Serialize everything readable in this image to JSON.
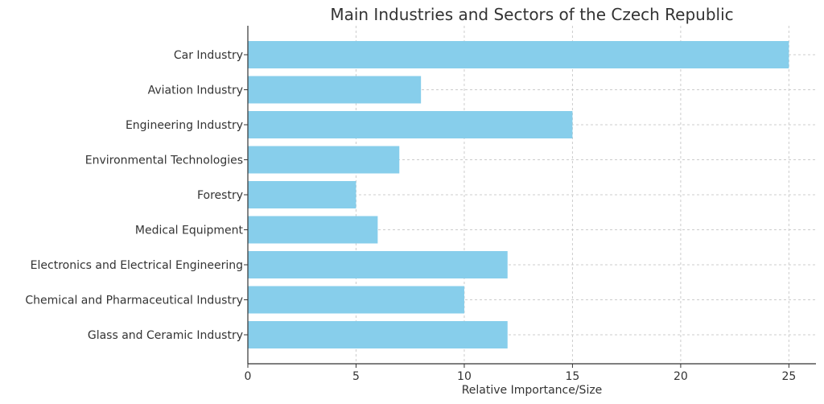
{
  "chart_data": {
    "type": "bar",
    "orientation": "horizontal",
    "title": "Main Industries and Sectors of the Czech Republic",
    "xlabel": "Relative Importance/Size",
    "ylabel": "",
    "categories": [
      "Car Industry",
      "Aviation Industry",
      "Engineering Industry",
      "Environmental Technologies",
      "Forestry",
      "Medical Equipment",
      "Electronics and Electrical Engineering",
      "Chemical and Pharmaceutical Industry",
      "Glass and Ceramic Industry"
    ],
    "values": [
      25,
      8,
      15,
      7,
      5,
      6,
      12,
      10,
      12
    ],
    "xlim": [
      0,
      26.25
    ],
    "xticks": [
      0,
      5,
      10,
      15,
      20,
      25
    ],
    "grid": true,
    "bar_color": "#87ceeb"
  }
}
